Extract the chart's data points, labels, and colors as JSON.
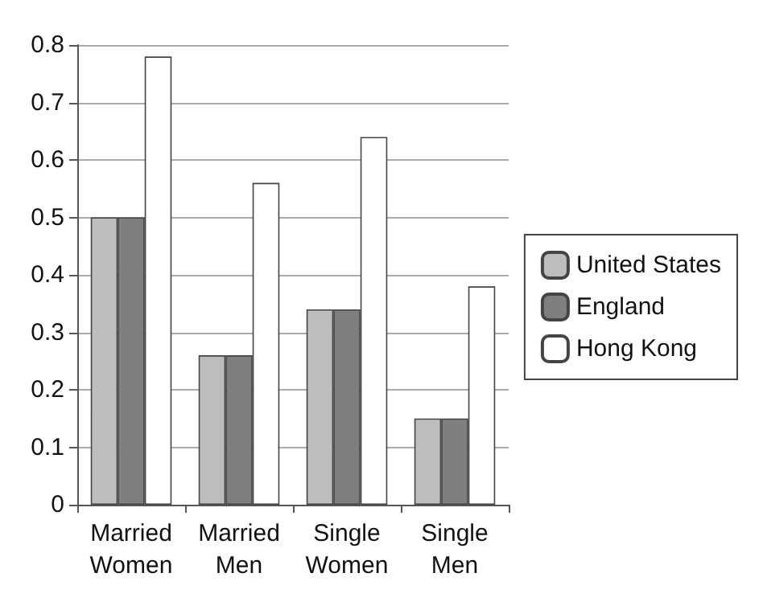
{
  "chart_data": {
    "type": "bar",
    "categories": [
      "Married\nWomen",
      "Married\nMen",
      "Single\nWomen",
      "Single\nMen"
    ],
    "series": [
      {
        "name": "United States",
        "color": "#bdbdbd",
        "values": [
          0.5,
          0.26,
          0.34,
          0.15
        ]
      },
      {
        "name": "England",
        "color": "#7f7f7f",
        "values": [
          0.5,
          0.26,
          0.34,
          0.15
        ]
      },
      {
        "name": "Hong Kong",
        "color": "#ffffff",
        "values": [
          0.78,
          0.56,
          0.64,
          0.38
        ]
      }
    ],
    "ylim": [
      0,
      0.8
    ],
    "yticks": [
      0,
      0.1,
      0.2,
      0.3,
      0.4,
      0.5,
      0.6,
      0.7,
      0.8
    ],
    "grid": "y",
    "legend": "right"
  }
}
